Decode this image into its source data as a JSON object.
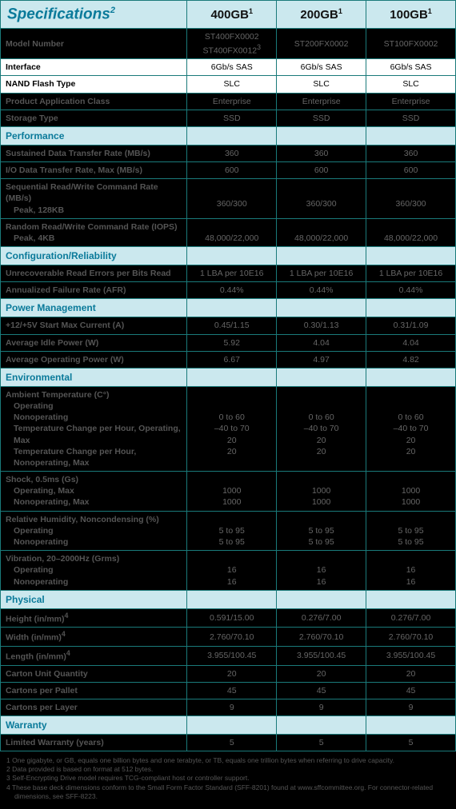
{
  "title": "Specifications",
  "title_sup": "2",
  "columns": [
    {
      "label": "400GB",
      "sup": "1"
    },
    {
      "label": "200GB",
      "sup": "1"
    },
    {
      "label": "100GB",
      "sup": "1"
    }
  ],
  "colors": {
    "header_bg": "#cbe8ee",
    "header_text": "#0a7a9a",
    "border": "#1a7a7a",
    "body_bg": "#000000",
    "text_dim": "#555555"
  },
  "rows": [
    {
      "label": "Model Number",
      "multiline": [
        [
          "ST400FX0002",
          "ST400FX0012",
          "3"
        ],
        [
          "ST200FX0002"
        ],
        [
          "ST100FX0002"
        ]
      ]
    },
    {
      "white": true,
      "label": "Interface",
      "vals": [
        "6Gb/s SAS",
        "6Gb/s SAS",
        "6Gb/s SAS"
      ]
    },
    {
      "white": true,
      "label": "NAND Flash Type",
      "vals": [
        "SLC",
        "SLC",
        "SLC"
      ]
    },
    {
      "label": "Product Application Class",
      "vals": [
        "Enterprise",
        "Enterprise",
        "Enterprise"
      ]
    },
    {
      "label": "Storage Type",
      "vals": [
        "SSD",
        "SSD",
        "SSD"
      ]
    },
    {
      "section": "Performance"
    },
    {
      "label": "Sustained Data Transfer Rate (MB/s)",
      "vals": [
        "360",
        "360",
        "360"
      ]
    },
    {
      "label": "I/O Data Transfer Rate, Max (MB/s)",
      "vals": [
        "600",
        "600",
        "600"
      ]
    },
    {
      "label": "Sequential Read/Write Command Rate (MB/s)",
      "sub": [
        "Peak, 128KB"
      ],
      "vals_bottom": [
        "360/300",
        "360/300",
        "360/300"
      ]
    },
    {
      "label": "Random Read/Write Command Rate (IOPS)",
      "sub": [
        "Peak, 4KB"
      ],
      "vals_bottom": [
        "48,000/22,000",
        "48,000/22,000",
        "48,000/22,000"
      ]
    },
    {
      "section": "Configuration/Reliability"
    },
    {
      "label": "Unrecoverable Read Errors per Bits Read",
      "vals": [
        "1 LBA per 10E16",
        "1 LBA per 10E16",
        "1 LBA per 10E16"
      ]
    },
    {
      "label": "Annualized Failure Rate (AFR)",
      "vals": [
        "0.44%",
        "0.44%",
        "0.44%"
      ]
    },
    {
      "section": "Power Management"
    },
    {
      "label": "+12/+5V Start Max Current (A)",
      "vals": [
        "0.45/1.15",
        "0.30/1.13",
        "0.31/1.09"
      ]
    },
    {
      "label": "Average Idle Power (W)",
      "vals": [
        "5.92",
        "4.04",
        "4.04"
      ]
    },
    {
      "label": "Average Operating Power (W)",
      "vals": [
        "6.67",
        "4.97",
        "4.82"
      ]
    },
    {
      "section": "Environmental"
    },
    {
      "label": "Ambient Temperature (C°)",
      "sub": [
        "Operating",
        "Nonoperating",
        "Temperature Change per Hour, Operating, Max",
        "Temperature Change per Hour, Nonoperating, Max"
      ],
      "valsml": [
        [
          "0 to 60",
          "–40 to 70",
          "20",
          "20"
        ],
        [
          "0 to 60",
          "–40 to 70",
          "20",
          "20"
        ],
        [
          "0 to 60",
          "–40 to 70",
          "20",
          "20"
        ]
      ]
    },
    {
      "label": "Shock, 0.5ms (Gs)",
      "sub": [
        "Operating, Max",
        "Nonoperating, Max"
      ],
      "valsml": [
        [
          "1000",
          "1000"
        ],
        [
          "1000",
          "1000"
        ],
        [
          "1000",
          "1000"
        ]
      ]
    },
    {
      "label": "Relative Humidity, Noncondensing (%)",
      "sub": [
        "Operating",
        "Nonoperating"
      ],
      "valsml": [
        [
          "5 to 95",
          "5 to 95"
        ],
        [
          "5 to 95",
          "5 to 95"
        ],
        [
          "5 to 95",
          "5 to 95"
        ]
      ]
    },
    {
      "label": "Vibration, 20–2000Hz (Grms)",
      "sub": [
        "Operating",
        "Nonoperating"
      ],
      "valsml": [
        [
          "16",
          "16"
        ],
        [
          "16",
          "16"
        ],
        [
          "16",
          "16"
        ]
      ]
    },
    {
      "section": "Physical"
    },
    {
      "label": "Height (in/mm)",
      "sup": "4",
      "vals": [
        "0.591/15.00",
        "0.276/7.00",
        "0.276/7.00"
      ]
    },
    {
      "label": "Width (in/mm)",
      "sup": "4",
      "vals": [
        "2.760/70.10",
        "2.760/70.10",
        "2.760/70.10"
      ]
    },
    {
      "label": "Length (in/mm)",
      "sup": "4",
      "vals": [
        "3.955/100.45",
        "3.955/100.45",
        "3.955/100.45"
      ]
    },
    {
      "label": "Carton Unit Quantity",
      "vals": [
        "20",
        "20",
        "20"
      ]
    },
    {
      "label": "Cartons per Pallet",
      "vals": [
        "45",
        "45",
        "45"
      ]
    },
    {
      "label": "Cartons per Layer",
      "vals": [
        "9",
        "9",
        "9"
      ]
    },
    {
      "section": "Warranty"
    },
    {
      "label": "Limited Warranty (years)",
      "vals": [
        "5",
        "5",
        "5"
      ]
    }
  ],
  "footnotes": [
    "1  One gigabyte, or GB, equals one billion bytes and one terabyte, or TB, equals one trillion bytes when referring to drive capacity.",
    "2  Data provided is based on format at 512 bytes.",
    "3  Self-Encrypting Drive model requires TCG-compliant host or controller support.",
    "4  These base deck dimensions conform to the Small Form Factor Standard (SFF-8201) found at www.sffcommittee.org. For connector-related dimensions, see SFF-8223."
  ]
}
